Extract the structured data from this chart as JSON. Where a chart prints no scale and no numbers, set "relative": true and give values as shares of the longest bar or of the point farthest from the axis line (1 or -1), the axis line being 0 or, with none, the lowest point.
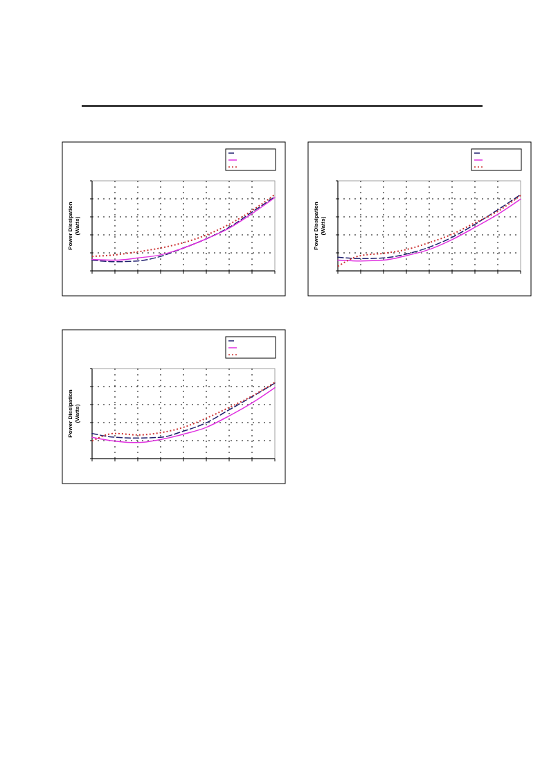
{
  "chart_data": [
    {
      "type": "line",
      "ylabel": "Power Dissipation\n(Watts)",
      "relative": true,
      "grid": true,
      "categories": [
        null,
        null,
        null,
        null,
        null,
        null,
        null,
        null,
        null
      ],
      "series": [
        {
          "color": "#1f1f6e",
          "line_style": "dashed",
          "values": [
            0.14,
            0.12,
            0.13,
            0.19,
            0.3,
            0.42,
            0.57,
            0.77,
            0.97
          ]
        },
        {
          "color": "#e030e0",
          "line_style": "solid",
          "values": [
            0.15,
            0.14,
            0.17,
            0.21,
            0.3,
            0.42,
            0.56,
            0.75,
            0.96
          ]
        },
        {
          "color": "#cc3333",
          "line_style": "dotted",
          "values": [
            0.19,
            0.21,
            0.25,
            0.3,
            0.37,
            0.47,
            0.61,
            0.79,
            1
          ]
        }
      ]
    },
    {
      "type": "line",
      "ylabel": "Power Dissipation\n(Watts)",
      "relative": true,
      "grid": true,
      "categories": [
        null,
        null,
        null,
        null,
        null,
        null,
        null,
        null,
        null
      ],
      "series": [
        {
          "color": "#1f1f6e",
          "line_style": "dashed",
          "values": [
            0.18,
            0.16,
            0.17,
            0.22,
            0.31,
            0.44,
            0.61,
            0.8,
            1
          ]
        },
        {
          "color": "#e030e0",
          "line_style": "solid",
          "values": [
            0.14,
            0.13,
            0.14,
            0.2,
            0.28,
            0.41,
            0.57,
            0.74,
            0.94
          ]
        },
        {
          "color": "#cc3333",
          "line_style": "dotted",
          "values": [
            0.06,
            0.2,
            0.23,
            0.28,
            0.37,
            0.48,
            0.63,
            0.78,
            0.99
          ]
        }
      ]
    },
    {
      "type": "line",
      "ylabel": "Power Dissipation\n(Watts)",
      "relative": true,
      "grid": true,
      "categories": [
        null,
        null,
        null,
        null,
        null,
        null,
        null,
        null,
        null
      ],
      "series": [
        {
          "color": "#1f1f6e",
          "line_style": "dashed",
          "values": [
            0.33,
            0.28,
            0.27,
            0.28,
            0.36,
            0.47,
            0.64,
            0.81,
            0.99
          ]
        },
        {
          "color": "#e030e0",
          "line_style": "solid",
          "values": [
            0.28,
            0.23,
            0.21,
            0.25,
            0.32,
            0.41,
            0.56,
            0.73,
            0.93
          ]
        },
        {
          "color": "#cc3333",
          "line_style": "dotted",
          "values": [
            0.23,
            0.33,
            0.31,
            0.34,
            0.41,
            0.53,
            0.67,
            0.82,
            1
          ]
        }
      ]
    }
  ]
}
